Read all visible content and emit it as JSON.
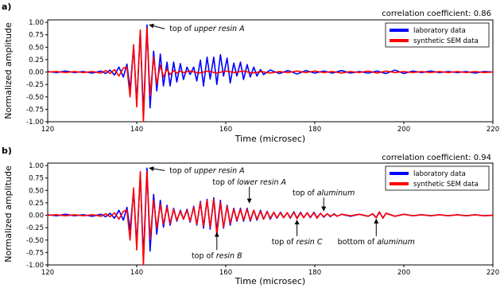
{
  "colors": {
    "laboratory": "#0000ff",
    "synthetic": "#ff0000"
  },
  "chart_data": [
    {
      "type": "line",
      "panel_label": "a)",
      "corr_label": "correlation coefficient: 0.86",
      "xlabel": "Time (microsec)",
      "ylabel": "Normalized amplitude",
      "xlim": [
        120,
        220
      ],
      "ylim": [
        -1.0,
        1.05
      ],
      "xticks": [
        120,
        140,
        160,
        180,
        200,
        220
      ],
      "yticks": [
        -1.0,
        -0.75,
        -0.5,
        -0.25,
        0.0,
        0.25,
        0.5,
        0.75,
        1.0
      ],
      "ytick_labels": [
        "-1.00",
        "-0.75",
        "-0.50",
        "-0.25",
        "0.00",
        "0.25",
        "0.50",
        "0.75",
        "1.00"
      ],
      "grid": false,
      "legend_position": "top-right",
      "series": [
        {
          "name": "laboratory data",
          "color": "#0000ff",
          "x": [
            120,
            122,
            124,
            126,
            128,
            130,
            132,
            133,
            134,
            135,
            136,
            137,
            137.8,
            138.5,
            139.3,
            140,
            140.8,
            141.5,
            142.3,
            143,
            143.8,
            144.5,
            145.3,
            146,
            146.8,
            147.5,
            148.3,
            149,
            149.8,
            150.5,
            151.3,
            152,
            152.8,
            153.5,
            154.3,
            155,
            155.8,
            156.5,
            157.3,
            158,
            158.8,
            159.5,
            160.3,
            161,
            161.8,
            162.5,
            163.3,
            164,
            164.8,
            165.5,
            166.3,
            167,
            167.8,
            168.5,
            170,
            172,
            174,
            176,
            178,
            180,
            182,
            184,
            186,
            188,
            190,
            192,
            194,
            196,
            198,
            200,
            202,
            204,
            206,
            208,
            210,
            212,
            214,
            216,
            218,
            220
          ],
          "y": [
            0.01,
            -0.01,
            0.02,
            -0.01,
            0.01,
            -0.02,
            0.02,
            -0.03,
            0.04,
            -0.06,
            0.1,
            -0.1,
            0.16,
            -0.35,
            0.52,
            -0.62,
            0.82,
            -0.86,
            0.95,
            -0.72,
            0.42,
            -0.38,
            0.36,
            -0.28,
            0.2,
            -0.28,
            0.2,
            -0.2,
            0.17,
            -0.15,
            0.1,
            -0.05,
            0.1,
            -0.18,
            0.24,
            -0.28,
            0.3,
            -0.14,
            0.3,
            -0.25,
            0.35,
            -0.08,
            0.28,
            -0.22,
            0.18,
            -0.08,
            0.2,
            -0.15,
            0.15,
            -0.1,
            0.1,
            -0.08,
            0.05,
            -0.05,
            0.04,
            -0.03,
            0.03,
            -0.04,
            0.03,
            -0.02,
            0.02,
            -0.02,
            0.03,
            -0.02,
            0.01,
            -0.02,
            0.02,
            -0.03,
            0.04,
            -0.03,
            0.02,
            -0.01,
            0.02,
            -0.01,
            0.01,
            -0.01,
            0.01,
            -0.02,
            0.01,
            0.0
          ]
        },
        {
          "name": "synthetic SEM data",
          "color": "#ff0000",
          "x": [
            120,
            122,
            124,
            126,
            128,
            130,
            132,
            133,
            134,
            135,
            136,
            137,
            137.8,
            138.5,
            139.3,
            140,
            140.8,
            141.5,
            142.3,
            143,
            143.8,
            144.5,
            145.3,
            146,
            146.8,
            147.5,
            148.3,
            149,
            149.8,
            150.5,
            152,
            154,
            156,
            158,
            160,
            162,
            164,
            166,
            168,
            170,
            172,
            174,
            176,
            178,
            180,
            182,
            184,
            186,
            188,
            190,
            192,
            194,
            196,
            198,
            200,
            202,
            204,
            206,
            208,
            210,
            212,
            214,
            216,
            218,
            220
          ],
          "y": [
            0.0,
            0.01,
            -0.01,
            0.01,
            -0.01,
            0.01,
            -0.02,
            0.03,
            -0.03,
            0.05,
            -0.08,
            0.08,
            0.1,
            -0.5,
            0.55,
            -0.7,
            0.85,
            -1.0,
            0.88,
            -0.48,
            0.3,
            -0.24,
            0.14,
            -0.1,
            0.06,
            -0.05,
            0.03,
            -0.02,
            0.02,
            -0.01,
            0.02,
            -0.02,
            0.02,
            -0.02,
            0.02,
            -0.01,
            0.02,
            -0.02,
            0.01,
            -0.02,
            0.01,
            -0.01,
            0.02,
            -0.01,
            0.02,
            -0.01,
            0.01,
            -0.02,
            0.01,
            -0.01,
            0.02,
            -0.02,
            0.02,
            -0.01,
            0.01,
            -0.01,
            0.01,
            -0.01,
            0.01,
            -0.01,
            0.01,
            -0.01,
            0.01,
            -0.01,
            0.0
          ]
        }
      ],
      "annotations": [
        {
          "parts": [
            {
              "t": "top of "
            },
            {
              "t": "upper resin A",
              "i": true
            }
          ],
          "target": [
            142.3,
            0.95
          ],
          "text_at": [
            147,
            0.87
          ],
          "arrow": "left"
        }
      ]
    },
    {
      "type": "line",
      "panel_label": "b)",
      "corr_label": "correlation coefficient: 0.94",
      "xlabel": "Time (microsec)",
      "ylabel": "Normalized amplitude",
      "xlim": [
        120,
        220
      ],
      "ylim": [
        -1.0,
        1.05
      ],
      "xticks": [
        120,
        140,
        160,
        180,
        200,
        220
      ],
      "yticks": [
        -1.0,
        -0.75,
        -0.5,
        -0.25,
        0.0,
        0.25,
        0.5,
        0.75,
        1.0
      ],
      "ytick_labels": [
        "-1.00",
        "-0.75",
        "-0.50",
        "-0.25",
        "0.00",
        "0.25",
        "0.50",
        "0.75",
        "1.00"
      ],
      "grid": false,
      "legend_position": "top-right",
      "series": [
        {
          "name": "laboratory data",
          "color": "#0000ff",
          "x": [
            120,
            122,
            124,
            126,
            128,
            130,
            132,
            133,
            134,
            135,
            136,
            137,
            137.8,
            138.5,
            139.3,
            140,
            140.8,
            141.5,
            142.3,
            143,
            143.8,
            144.5,
            145.3,
            146,
            146.8,
            147.5,
            148.3,
            149,
            149.8,
            150.5,
            151.3,
            152,
            152.8,
            153.5,
            154.3,
            155,
            155.8,
            156.5,
            157.3,
            158,
            158.8,
            159.5,
            160.3,
            161,
            161.8,
            162.5,
            163.3,
            164,
            164.8,
            165.5,
            166.3,
            167,
            167.8,
            168.5,
            169.3,
            170,
            170.8,
            171.5,
            172.3,
            173,
            173.8,
            174.5,
            175.3,
            176,
            176.8,
            177.5,
            178.3,
            179,
            179.8,
            180.5,
            181.3,
            182,
            182.8,
            183.5,
            184.3,
            185,
            186,
            188,
            190,
            192,
            193,
            193.8,
            194.5,
            195.3,
            196,
            198,
            200,
            202,
            204,
            206,
            208,
            210,
            212,
            214,
            216,
            218,
            220
          ],
          "y": [
            0.01,
            -0.01,
            0.02,
            -0.01,
            0.01,
            -0.02,
            0.02,
            -0.03,
            0.04,
            -0.06,
            0.1,
            -0.1,
            0.16,
            -0.3,
            0.5,
            -0.6,
            0.82,
            -0.86,
            0.95,
            -0.72,
            0.42,
            -0.38,
            0.3,
            -0.24,
            0.2,
            -0.2,
            0.14,
            -0.12,
            0.1,
            -0.08,
            0.12,
            -0.14,
            0.18,
            -0.2,
            0.28,
            -0.26,
            0.32,
            -0.28,
            0.35,
            -0.32,
            0.3,
            -0.26,
            0.2,
            -0.2,
            0.14,
            -0.12,
            0.14,
            -0.12,
            0.14,
            -0.12,
            0.1,
            -0.1,
            0.1,
            -0.08,
            0.08,
            -0.08,
            0.06,
            -0.06,
            0.06,
            -0.05,
            0.05,
            -0.06,
            0.07,
            -0.06,
            0.06,
            -0.05,
            0.05,
            -0.05,
            0.06,
            -0.05,
            0.04,
            -0.04,
            0.03,
            -0.03,
            0.03,
            -0.02,
            0.02,
            -0.02,
            0.02,
            -0.02,
            0.03,
            -0.05,
            0.06,
            -0.05,
            0.04,
            -0.02,
            0.02,
            -0.01,
            0.01,
            -0.01,
            0.01,
            -0.01,
            0.01,
            -0.01,
            0.01,
            -0.01,
            0.0
          ]
        },
        {
          "name": "synthetic SEM data",
          "color": "#ff0000",
          "x": [
            120,
            122,
            124,
            126,
            128,
            130,
            132,
            133,
            134,
            135,
            136,
            137,
            137.8,
            138.5,
            139.3,
            140,
            140.8,
            141.5,
            142.3,
            143,
            143.8,
            144.5,
            145.3,
            146,
            146.8,
            147.5,
            148.3,
            149,
            149.8,
            150.5,
            151.3,
            152,
            152.8,
            153.5,
            154.3,
            155,
            155.8,
            156.5,
            157.3,
            158,
            158.8,
            159.5,
            160.3,
            161,
            161.8,
            162.5,
            163.3,
            164,
            164.8,
            165.5,
            166.3,
            167,
            167.8,
            168.5,
            169.3,
            170,
            170.8,
            171.5,
            172.3,
            173,
            173.8,
            174.5,
            175.3,
            176,
            176.8,
            177.5,
            178.3,
            179,
            179.8,
            180.5,
            181.3,
            182,
            182.8,
            183.5,
            184.3,
            185,
            186,
            188,
            190,
            192,
            193,
            193.8,
            194.5,
            195.3,
            196,
            198,
            200,
            202,
            204,
            206,
            208,
            210,
            212,
            214,
            216,
            218,
            220
          ],
          "y": [
            0.0,
            0.01,
            -0.01,
            0.01,
            -0.01,
            0.01,
            -0.02,
            0.03,
            -0.03,
            0.05,
            -0.08,
            0.08,
            0.1,
            -0.5,
            0.55,
            -0.7,
            0.88,
            -1.0,
            0.88,
            -0.48,
            0.3,
            -0.26,
            0.22,
            -0.18,
            0.16,
            -0.16,
            0.12,
            -0.1,
            0.08,
            -0.08,
            0.1,
            -0.12,
            0.16,
            -0.18,
            0.26,
            -0.22,
            0.3,
            -0.24,
            0.32,
            -0.4,
            0.26,
            -0.24,
            0.18,
            -0.16,
            0.12,
            -0.1,
            0.12,
            -0.1,
            0.12,
            -0.1,
            0.1,
            -0.08,
            0.08,
            -0.08,
            0.07,
            -0.06,
            0.06,
            -0.05,
            0.05,
            -0.05,
            0.05,
            -0.05,
            0.06,
            -0.07,
            0.05,
            -0.05,
            0.05,
            -0.04,
            0.05,
            -0.06,
            0.04,
            -0.03,
            0.03,
            -0.02,
            0.02,
            -0.02,
            0.02,
            -0.01,
            0.02,
            -0.02,
            0.03,
            -0.05,
            0.07,
            -0.06,
            0.04,
            -0.02,
            0.02,
            -0.01,
            0.01,
            -0.01,
            0.01,
            -0.01,
            0.01,
            -0.01,
            0.01,
            -0.01,
            0.0
          ]
        }
      ],
      "annotations": [
        {
          "parts": [
            {
              "t": "top of "
            },
            {
              "t": "upper resin A",
              "i": true
            }
          ],
          "target": [
            142.3,
            0.95
          ],
          "text_at": [
            147,
            0.9
          ],
          "arrow": "left"
        },
        {
          "parts": [
            {
              "t": "top of "
            },
            {
              "t": "lower resin A",
              "i": true
            }
          ],
          "target": [
            165.3,
            0.2
          ],
          "text_at": [
            165.3,
            0.62
          ],
          "arrow": "down"
        },
        {
          "parts": [
            {
              "t": "top of "
            },
            {
              "t": "aluminum",
              "i": true
            }
          ],
          "target": [
            182,
            0.04
          ],
          "text_at": [
            182,
            0.4
          ],
          "arrow": "down"
        },
        {
          "parts": [
            {
              "t": "top of "
            },
            {
              "t": "resin B",
              "i": true
            }
          ],
          "target": [
            158,
            -0.3
          ],
          "text_at": [
            158,
            -0.86
          ],
          "arrow": "up"
        },
        {
          "parts": [
            {
              "t": "top of "
            },
            {
              "t": "resin C",
              "i": true
            }
          ],
          "target": [
            176,
            -0.05
          ],
          "text_at": [
            176,
            -0.58
          ],
          "arrow": "up"
        },
        {
          "parts": [
            {
              "t": "bottom of "
            },
            {
              "t": "aluminum",
              "i": true
            }
          ],
          "target": [
            193.8,
            -0.03
          ],
          "text_at": [
            193.8,
            -0.58
          ],
          "arrow": "up"
        }
      ]
    }
  ]
}
